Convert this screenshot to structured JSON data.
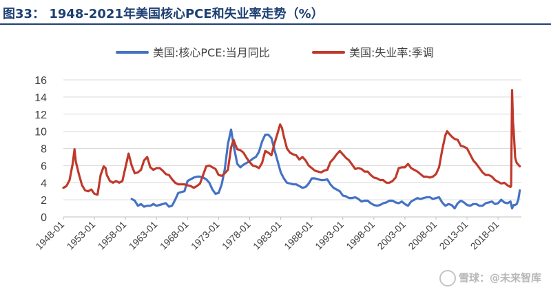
{
  "title": "图33：  1948-2021年美国核心PCE和失业率走势（%）",
  "watermark": "雪球：@未来智库",
  "chart_data": {
    "type": "line",
    "title": "",
    "xlabel": "",
    "ylabel": "",
    "ylim": [
      0,
      16
    ],
    "yticks": [
      0,
      2,
      4,
      6,
      8,
      10,
      12,
      14,
      16
    ],
    "xlim": [
      1948.0,
      2021.75
    ],
    "xticks": [
      "1948-01",
      "1953-01",
      "1958-01",
      "1963-01",
      "1968-01",
      "1973-01",
      "1978-01",
      "1983-01",
      "1988-01",
      "1993-01",
      "1998-01",
      "2003-01",
      "2008-01",
      "2013-01",
      "2018-01"
    ],
    "grid": true,
    "legend_position": "top",
    "series": [
      {
        "name": "美国:核心PCE:当月同比",
        "color": "#4472c4",
        "points": [
          [
            1959.0,
            2.1
          ],
          [
            1959.5,
            1.9
          ],
          [
            1960.0,
            1.3
          ],
          [
            1960.5,
            1.5
          ],
          [
            1961.0,
            1.2
          ],
          [
            1961.5,
            1.3
          ],
          [
            1962.0,
            1.3
          ],
          [
            1962.5,
            1.5
          ],
          [
            1963.0,
            1.3
          ],
          [
            1963.5,
            1.4
          ],
          [
            1964.0,
            1.5
          ],
          [
            1964.5,
            1.6
          ],
          [
            1965.0,
            1.2
          ],
          [
            1965.5,
            1.3
          ],
          [
            1966.0,
            2.0
          ],
          [
            1966.5,
            2.8
          ],
          [
            1967.0,
            2.9
          ],
          [
            1967.5,
            3.0
          ],
          [
            1968.0,
            4.2
          ],
          [
            1968.5,
            4.4
          ],
          [
            1969.0,
            4.6
          ],
          [
            1969.5,
            4.7
          ],
          [
            1970.0,
            4.7
          ],
          [
            1970.5,
            4.6
          ],
          [
            1971.0,
            4.4
          ],
          [
            1971.5,
            4.0
          ],
          [
            1972.0,
            3.2
          ],
          [
            1972.5,
            2.7
          ],
          [
            1973.0,
            2.8
          ],
          [
            1973.5,
            3.8
          ],
          [
            1974.0,
            5.6
          ],
          [
            1974.5,
            8.5
          ],
          [
            1975.0,
            10.2
          ],
          [
            1975.5,
            8.0
          ],
          [
            1976.0,
            6.2
          ],
          [
            1976.5,
            5.8
          ],
          [
            1977.0,
            6.1
          ],
          [
            1977.5,
            6.3
          ],
          [
            1978.0,
            6.5
          ],
          [
            1978.5,
            6.8
          ],
          [
            1979.0,
            7.0
          ],
          [
            1979.5,
            7.6
          ],
          [
            1980.0,
            8.8
          ],
          [
            1980.5,
            9.6
          ],
          [
            1981.0,
            9.6
          ],
          [
            1981.5,
            9.2
          ],
          [
            1982.0,
            7.8
          ],
          [
            1982.5,
            6.5
          ],
          [
            1983.0,
            5.2
          ],
          [
            1983.5,
            4.5
          ],
          [
            1984.0,
            4.0
          ],
          [
            1984.5,
            3.9
          ],
          [
            1985.0,
            3.8
          ],
          [
            1985.5,
            3.8
          ],
          [
            1986.0,
            3.6
          ],
          [
            1986.5,
            3.4
          ],
          [
            1987.0,
            3.5
          ],
          [
            1987.5,
            3.9
          ],
          [
            1988.0,
            4.5
          ],
          [
            1988.5,
            4.5
          ],
          [
            1989.0,
            4.4
          ],
          [
            1989.5,
            4.3
          ],
          [
            1990.0,
            4.3
          ],
          [
            1990.5,
            4.4
          ],
          [
            1991.0,
            3.8
          ],
          [
            1991.5,
            3.4
          ],
          [
            1992.0,
            3.2
          ],
          [
            1992.5,
            3.0
          ],
          [
            1993.0,
            2.5
          ],
          [
            1993.5,
            2.4
          ],
          [
            1994.0,
            2.2
          ],
          [
            1994.5,
            2.2
          ],
          [
            1995.0,
            2.3
          ],
          [
            1995.5,
            2.1
          ],
          [
            1996.0,
            1.8
          ],
          [
            1996.5,
            1.9
          ],
          [
            1997.0,
            1.9
          ],
          [
            1997.5,
            1.6
          ],
          [
            1998.0,
            1.4
          ],
          [
            1998.5,
            1.3
          ],
          [
            1999.0,
            1.4
          ],
          [
            1999.5,
            1.6
          ],
          [
            2000.0,
            1.7
          ],
          [
            2000.5,
            1.9
          ],
          [
            2001.0,
            1.9
          ],
          [
            2001.5,
            1.7
          ],
          [
            2002.0,
            1.6
          ],
          [
            2002.5,
            1.8
          ],
          [
            2003.0,
            1.5
          ],
          [
            2003.5,
            1.3
          ],
          [
            2004.0,
            1.8
          ],
          [
            2004.5,
            2.0
          ],
          [
            2005.0,
            2.2
          ],
          [
            2005.5,
            2.1
          ],
          [
            2006.0,
            2.2
          ],
          [
            2006.5,
            2.3
          ],
          [
            2007.0,
            2.3
          ],
          [
            2007.5,
            2.1
          ],
          [
            2008.0,
            2.2
          ],
          [
            2008.5,
            2.3
          ],
          [
            2009.0,
            1.7
          ],
          [
            2009.5,
            1.3
          ],
          [
            2010.0,
            1.5
          ],
          [
            2010.5,
            1.4
          ],
          [
            2011.0,
            1.0
          ],
          [
            2011.5,
            1.6
          ],
          [
            2012.0,
            1.9
          ],
          [
            2012.5,
            1.7
          ],
          [
            2013.0,
            1.4
          ],
          [
            2013.5,
            1.3
          ],
          [
            2014.0,
            1.5
          ],
          [
            2014.5,
            1.5
          ],
          [
            2015.0,
            1.3
          ],
          [
            2015.5,
            1.3
          ],
          [
            2016.0,
            1.6
          ],
          [
            2016.5,
            1.7
          ],
          [
            2017.0,
            1.8
          ],
          [
            2017.5,
            1.5
          ],
          [
            2018.0,
            1.6
          ],
          [
            2018.5,
            2.0
          ],
          [
            2019.0,
            1.7
          ],
          [
            2019.5,
            1.6
          ],
          [
            2020.0,
            1.8
          ],
          [
            2020.25,
            1.0
          ],
          [
            2020.5,
            1.4
          ],
          [
            2020.75,
            1.4
          ],
          [
            2021.0,
            1.5
          ],
          [
            2021.25,
            2.0
          ],
          [
            2021.5,
            3.1
          ]
        ]
      },
      {
        "name": "美国:失业率:季调",
        "color": "#c0392b",
        "points": [
          [
            1948.0,
            3.4
          ],
          [
            1948.5,
            3.6
          ],
          [
            1949.0,
            4.3
          ],
          [
            1949.5,
            6.2
          ],
          [
            1949.8,
            7.9
          ],
          [
            1950.0,
            6.5
          ],
          [
            1950.5,
            5.0
          ],
          [
            1951.0,
            3.7
          ],
          [
            1951.5,
            3.1
          ],
          [
            1952.0,
            3.0
          ],
          [
            1952.5,
            3.2
          ],
          [
            1953.0,
            2.7
          ],
          [
            1953.5,
            2.6
          ],
          [
            1954.0,
            4.9
          ],
          [
            1954.5,
            5.9
          ],
          [
            1954.8,
            5.7
          ],
          [
            1955.0,
            4.9
          ],
          [
            1955.5,
            4.2
          ],
          [
            1956.0,
            4.0
          ],
          [
            1956.5,
            4.2
          ],
          [
            1957.0,
            4.0
          ],
          [
            1957.5,
            4.2
          ],
          [
            1958.0,
            5.8
          ],
          [
            1958.5,
            7.4
          ],
          [
            1959.0,
            6.0
          ],
          [
            1959.5,
            5.1
          ],
          [
            1960.0,
            5.2
          ],
          [
            1960.5,
            5.5
          ],
          [
            1961.0,
            6.6
          ],
          [
            1961.5,
            7.0
          ],
          [
            1962.0,
            5.8
          ],
          [
            1962.5,
            5.5
          ],
          [
            1963.0,
            5.7
          ],
          [
            1963.5,
            5.7
          ],
          [
            1964.0,
            5.4
          ],
          [
            1964.5,
            5.0
          ],
          [
            1965.0,
            4.9
          ],
          [
            1965.5,
            4.4
          ],
          [
            1966.0,
            4.0
          ],
          [
            1966.5,
            3.8
          ],
          [
            1967.0,
            3.8
          ],
          [
            1967.5,
            3.8
          ],
          [
            1968.0,
            3.7
          ],
          [
            1968.5,
            3.6
          ],
          [
            1969.0,
            3.4
          ],
          [
            1969.5,
            3.6
          ],
          [
            1970.0,
            3.9
          ],
          [
            1970.5,
            4.9
          ],
          [
            1971.0,
            5.9
          ],
          [
            1971.5,
            6.0
          ],
          [
            1972.0,
            5.8
          ],
          [
            1972.5,
            5.6
          ],
          [
            1973.0,
            4.9
          ],
          [
            1973.5,
            4.8
          ],
          [
            1974.0,
            5.1
          ],
          [
            1974.5,
            5.5
          ],
          [
            1975.0,
            8.1
          ],
          [
            1975.4,
            9.0
          ],
          [
            1975.7,
            8.4
          ],
          [
            1976.0,
            7.9
          ],
          [
            1976.5,
            7.8
          ],
          [
            1977.0,
            7.5
          ],
          [
            1977.5,
            6.9
          ],
          [
            1978.0,
            6.4
          ],
          [
            1978.5,
            6.0
          ],
          [
            1979.0,
            5.9
          ],
          [
            1979.5,
            5.7
          ],
          [
            1980.0,
            6.3
          ],
          [
            1980.5,
            7.7
          ],
          [
            1981.0,
            7.5
          ],
          [
            1981.5,
            7.2
          ],
          [
            1982.0,
            8.6
          ],
          [
            1982.5,
            9.8
          ],
          [
            1982.9,
            10.8
          ],
          [
            1983.2,
            10.4
          ],
          [
            1983.5,
            9.4
          ],
          [
            1984.0,
            8.0
          ],
          [
            1984.5,
            7.5
          ],
          [
            1985.0,
            7.3
          ],
          [
            1985.5,
            7.2
          ],
          [
            1986.0,
            6.7
          ],
          [
            1986.5,
            7.0
          ],
          [
            1987.0,
            6.6
          ],
          [
            1987.5,
            6.0
          ],
          [
            1988.0,
            5.7
          ],
          [
            1988.5,
            5.4
          ],
          [
            1989.0,
            5.3
          ],
          [
            1989.5,
            5.2
          ],
          [
            1990.0,
            5.4
          ],
          [
            1990.5,
            5.5
          ],
          [
            1991.0,
            6.4
          ],
          [
            1991.5,
            6.8
          ],
          [
            1992.0,
            7.3
          ],
          [
            1992.5,
            7.7
          ],
          [
            1993.0,
            7.3
          ],
          [
            1993.5,
            6.9
          ],
          [
            1994.0,
            6.6
          ],
          [
            1994.5,
            6.1
          ],
          [
            1995.0,
            5.6
          ],
          [
            1995.5,
            5.7
          ],
          [
            1996.0,
            5.6
          ],
          [
            1996.5,
            5.3
          ],
          [
            1997.0,
            5.3
          ],
          [
            1997.5,
            4.9
          ],
          [
            1998.0,
            4.6
          ],
          [
            1998.5,
            4.5
          ],
          [
            1999.0,
            4.3
          ],
          [
            1999.5,
            4.3
          ],
          [
            2000.0,
            4.0
          ],
          [
            2000.5,
            4.0
          ],
          [
            2001.0,
            4.2
          ],
          [
            2001.5,
            4.6
          ],
          [
            2002.0,
            5.7
          ],
          [
            2002.5,
            5.8
          ],
          [
            2003.0,
            5.8
          ],
          [
            2003.5,
            6.2
          ],
          [
            2004.0,
            5.7
          ],
          [
            2004.5,
            5.5
          ],
          [
            2005.0,
            5.3
          ],
          [
            2005.5,
            5.0
          ],
          [
            2006.0,
            4.7
          ],
          [
            2006.5,
            4.7
          ],
          [
            2007.0,
            4.6
          ],
          [
            2007.5,
            4.7
          ],
          [
            2008.0,
            5.0
          ],
          [
            2008.5,
            5.8
          ],
          [
            2009.0,
            7.8
          ],
          [
            2009.5,
            9.5
          ],
          [
            2009.8,
            10.0
          ],
          [
            2010.0,
            9.8
          ],
          [
            2010.5,
            9.4
          ],
          [
            2011.0,
            9.1
          ],
          [
            2011.5,
            9.0
          ],
          [
            2012.0,
            8.3
          ],
          [
            2012.5,
            8.2
          ],
          [
            2013.0,
            8.0
          ],
          [
            2013.5,
            7.3
          ],
          [
            2014.0,
            6.6
          ],
          [
            2014.5,
            6.2
          ],
          [
            2015.0,
            5.7
          ],
          [
            2015.5,
            5.2
          ],
          [
            2016.0,
            4.9
          ],
          [
            2016.5,
            4.9
          ],
          [
            2017.0,
            4.7
          ],
          [
            2017.5,
            4.3
          ],
          [
            2018.0,
            4.1
          ],
          [
            2018.5,
            3.9
          ],
          [
            2019.0,
            4.0
          ],
          [
            2019.5,
            3.7
          ],
          [
            2020.0,
            3.5
          ],
          [
            2020.1,
            3.6
          ],
          [
            2020.25,
            14.8
          ],
          [
            2020.4,
            11.1
          ],
          [
            2020.5,
            10.2
          ],
          [
            2020.75,
            6.9
          ],
          [
            2021.0,
            6.3
          ],
          [
            2021.25,
            6.1
          ],
          [
            2021.5,
            5.9
          ]
        ]
      }
    ]
  }
}
